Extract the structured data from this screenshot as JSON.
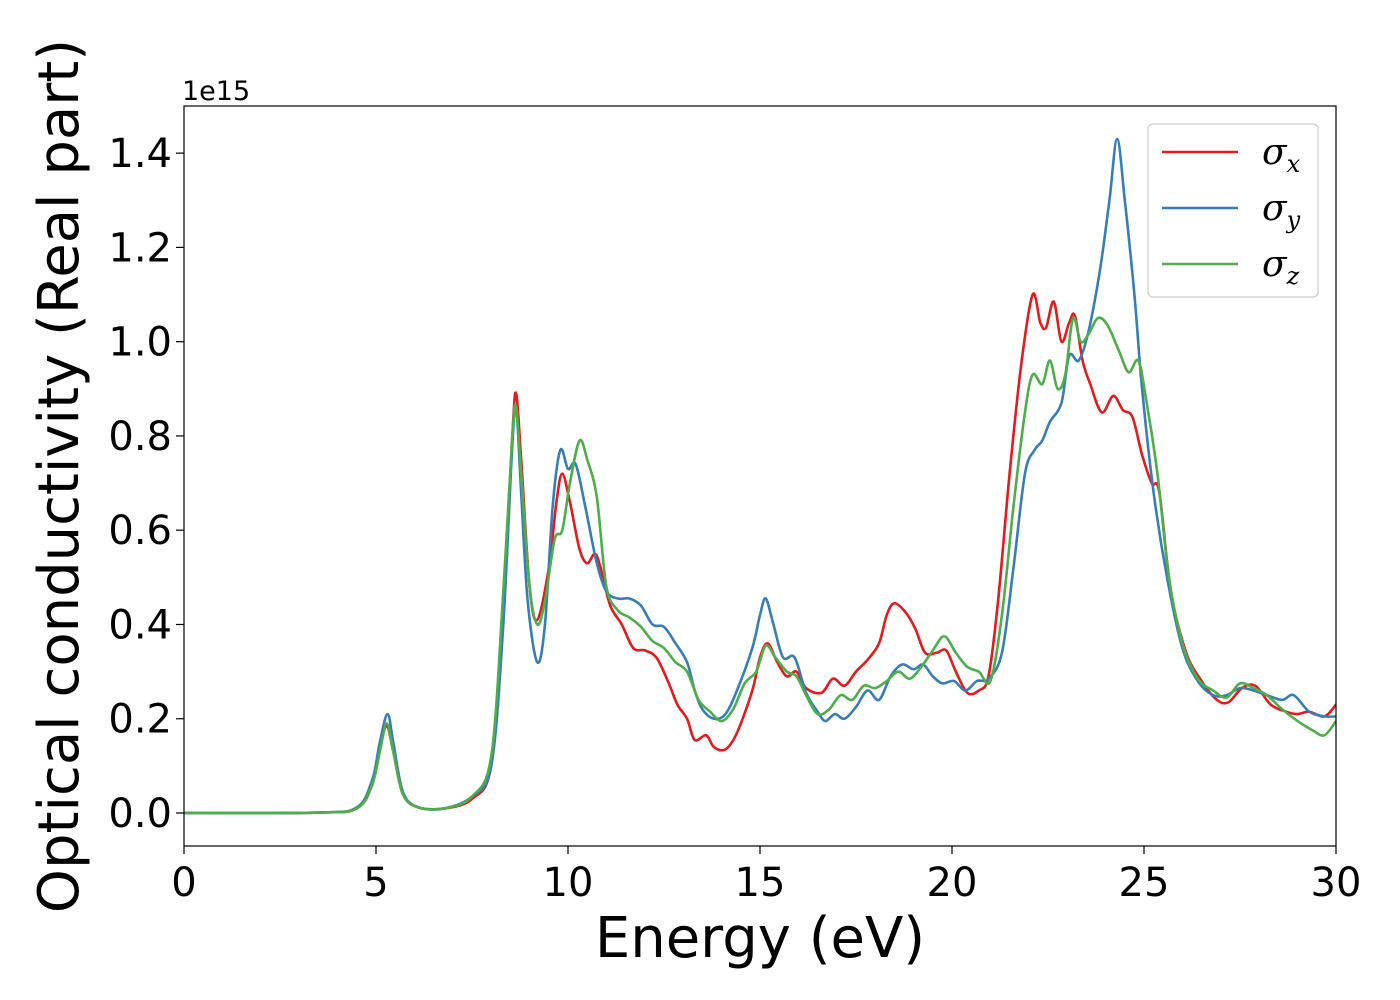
{
  "chart_data": {
    "type": "line",
    "title": "",
    "xlabel": "Energy (eV)",
    "ylabel": "Optical conductivity (Real part)",
    "y_offset_text": "1e15",
    "xlim": [
      0,
      30
    ],
    "ylim": [
      -0.07,
      1.5
    ],
    "x_ticks": [
      0,
      5,
      10,
      15,
      20,
      25,
      30
    ],
    "x_tick_labels": [
      "0",
      "5",
      "10",
      "15",
      "20",
      "25",
      "30"
    ],
    "y_ticks": [
      0.0,
      0.2,
      0.4,
      0.6,
      0.8,
      1.0,
      1.2,
      1.4
    ],
    "y_tick_labels": [
      "0.0",
      "0.2",
      "0.4",
      "0.6",
      "0.8",
      "1.0",
      "1.2",
      "1.4"
    ],
    "grid": false,
    "legend_position": "top-right",
    "series": [
      {
        "name": "σx",
        "name_base": "σ",
        "name_sub": "x",
        "color": "#e41a1c",
        "points": [
          [
            0,
            0
          ],
          [
            3.5,
            0.001
          ],
          [
            4.5,
            0.01
          ],
          [
            4.9,
            0.06
          ],
          [
            5.1,
            0.14
          ],
          [
            5.28,
            0.185
          ],
          [
            5.45,
            0.13
          ],
          [
            5.7,
            0.04
          ],
          [
            6.1,
            0.012
          ],
          [
            6.8,
            0.01
          ],
          [
            7.5,
            0.03
          ],
          [
            8.0,
            0.1
          ],
          [
            8.3,
            0.4
          ],
          [
            8.55,
            0.8
          ],
          [
            8.65,
            0.89
          ],
          [
            8.78,
            0.75
          ],
          [
            9.0,
            0.48
          ],
          [
            9.2,
            0.41
          ],
          [
            9.5,
            0.52
          ],
          [
            9.7,
            0.66
          ],
          [
            9.85,
            0.72
          ],
          [
            10.05,
            0.66
          ],
          [
            10.3,
            0.56
          ],
          [
            10.5,
            0.53
          ],
          [
            10.7,
            0.55
          ],
          [
            10.85,
            0.52
          ],
          [
            11.1,
            0.44
          ],
          [
            11.4,
            0.4
          ],
          [
            11.7,
            0.35
          ],
          [
            12.0,
            0.345
          ],
          [
            12.3,
            0.33
          ],
          [
            12.6,
            0.28
          ],
          [
            12.85,
            0.23
          ],
          [
            13.1,
            0.2
          ],
          [
            13.3,
            0.155
          ],
          [
            13.6,
            0.165
          ],
          [
            13.8,
            0.14
          ],
          [
            14.1,
            0.135
          ],
          [
            14.4,
            0.17
          ],
          [
            14.8,
            0.26
          ],
          [
            15.0,
            0.33
          ],
          [
            15.2,
            0.36
          ],
          [
            15.45,
            0.32
          ],
          [
            15.7,
            0.29
          ],
          [
            15.95,
            0.3
          ],
          [
            16.2,
            0.265
          ],
          [
            16.6,
            0.255
          ],
          [
            16.9,
            0.285
          ],
          [
            17.2,
            0.27
          ],
          [
            17.5,
            0.3
          ],
          [
            17.8,
            0.325
          ],
          [
            18.1,
            0.36
          ],
          [
            18.3,
            0.42
          ],
          [
            18.5,
            0.445
          ],
          [
            18.8,
            0.425
          ],
          [
            19.05,
            0.39
          ],
          [
            19.3,
            0.34
          ],
          [
            19.6,
            0.34
          ],
          [
            19.85,
            0.345
          ],
          [
            20.1,
            0.3
          ],
          [
            20.4,
            0.255
          ],
          [
            20.7,
            0.26
          ],
          [
            20.95,
            0.29
          ],
          [
            21.2,
            0.45
          ],
          [
            21.5,
            0.72
          ],
          [
            21.8,
            0.95
          ],
          [
            22.1,
            1.1
          ],
          [
            22.3,
            1.04
          ],
          [
            22.45,
            1.03
          ],
          [
            22.65,
            1.085
          ],
          [
            22.85,
            1.0
          ],
          [
            23.05,
            1.04
          ],
          [
            23.2,
            1.055
          ],
          [
            23.4,
            0.96
          ],
          [
            23.6,
            0.91
          ],
          [
            23.9,
            0.85
          ],
          [
            24.2,
            0.885
          ],
          [
            24.45,
            0.855
          ],
          [
            24.7,
            0.84
          ],
          [
            24.95,
            0.76
          ],
          [
            25.2,
            0.7
          ],
          [
            25.4,
            0.68
          ],
          [
            25.7,
            0.47
          ],
          [
            26.1,
            0.34
          ],
          [
            26.5,
            0.28
          ],
          [
            26.9,
            0.24
          ],
          [
            27.2,
            0.235
          ],
          [
            27.55,
            0.265
          ],
          [
            27.9,
            0.27
          ],
          [
            28.3,
            0.23
          ],
          [
            28.7,
            0.215
          ],
          [
            29.0,
            0.21
          ],
          [
            29.3,
            0.215
          ],
          [
            29.7,
            0.205
          ],
          [
            30.0,
            0.23
          ]
        ]
      },
      {
        "name": "σy",
        "name_base": "σ",
        "name_sub": "y",
        "color": "#377eb8",
        "points": [
          [
            0,
            0
          ],
          [
            3.5,
            0.001
          ],
          [
            4.5,
            0.012
          ],
          [
            4.9,
            0.07
          ],
          [
            5.1,
            0.15
          ],
          [
            5.3,
            0.21
          ],
          [
            5.45,
            0.15
          ],
          [
            5.7,
            0.045
          ],
          [
            6.1,
            0.012
          ],
          [
            6.8,
            0.01
          ],
          [
            7.5,
            0.035
          ],
          [
            8.0,
            0.1
          ],
          [
            8.3,
            0.38
          ],
          [
            8.55,
            0.78
          ],
          [
            8.65,
            0.86
          ],
          [
            8.78,
            0.68
          ],
          [
            8.95,
            0.45
          ],
          [
            9.2,
            0.32
          ],
          [
            9.4,
            0.4
          ],
          [
            9.6,
            0.65
          ],
          [
            9.8,
            0.77
          ],
          [
            10.0,
            0.73
          ],
          [
            10.2,
            0.74
          ],
          [
            10.45,
            0.65
          ],
          [
            10.75,
            0.53
          ],
          [
            11.0,
            0.47
          ],
          [
            11.3,
            0.455
          ],
          [
            11.6,
            0.455
          ],
          [
            11.9,
            0.44
          ],
          [
            12.2,
            0.4
          ],
          [
            12.5,
            0.395
          ],
          [
            12.8,
            0.36
          ],
          [
            13.1,
            0.32
          ],
          [
            13.3,
            0.26
          ],
          [
            13.5,
            0.22
          ],
          [
            13.8,
            0.2
          ],
          [
            14.1,
            0.21
          ],
          [
            14.4,
            0.26
          ],
          [
            14.8,
            0.35
          ],
          [
            15.0,
            0.42
          ],
          [
            15.15,
            0.455
          ],
          [
            15.35,
            0.4
          ],
          [
            15.6,
            0.33
          ],
          [
            15.9,
            0.33
          ],
          [
            16.2,
            0.255
          ],
          [
            16.5,
            0.215
          ],
          [
            16.7,
            0.195
          ],
          [
            16.95,
            0.21
          ],
          [
            17.2,
            0.2
          ],
          [
            17.5,
            0.225
          ],
          [
            17.8,
            0.26
          ],
          [
            18.1,
            0.24
          ],
          [
            18.4,
            0.29
          ],
          [
            18.7,
            0.315
          ],
          [
            19.0,
            0.305
          ],
          [
            19.25,
            0.315
          ],
          [
            19.5,
            0.29
          ],
          [
            19.75,
            0.275
          ],
          [
            20.05,
            0.28
          ],
          [
            20.35,
            0.26
          ],
          [
            20.65,
            0.28
          ],
          [
            20.95,
            0.285
          ],
          [
            21.3,
            0.34
          ],
          [
            21.6,
            0.52
          ],
          [
            21.9,
            0.72
          ],
          [
            22.15,
            0.77
          ],
          [
            22.35,
            0.79
          ],
          [
            22.55,
            0.83
          ],
          [
            22.85,
            0.87
          ],
          [
            23.05,
            0.97
          ],
          [
            23.3,
            0.96
          ],
          [
            23.55,
            1.02
          ],
          [
            23.85,
            1.15
          ],
          [
            24.1,
            1.3
          ],
          [
            24.3,
            1.43
          ],
          [
            24.5,
            1.3
          ],
          [
            24.75,
            1.1
          ],
          [
            24.95,
            0.9
          ],
          [
            25.25,
            0.68
          ],
          [
            25.6,
            0.5
          ],
          [
            26.0,
            0.35
          ],
          [
            26.4,
            0.28
          ],
          [
            26.8,
            0.25
          ],
          [
            27.15,
            0.25
          ],
          [
            27.5,
            0.265
          ],
          [
            27.85,
            0.26
          ],
          [
            28.2,
            0.25
          ],
          [
            28.6,
            0.24
          ],
          [
            28.9,
            0.25
          ],
          [
            29.3,
            0.215
          ],
          [
            29.7,
            0.205
          ],
          [
            30.0,
            0.205
          ]
        ]
      },
      {
        "name": "σz",
        "name_base": "σ",
        "name_sub": "z",
        "color": "#4daf4a",
        "points": [
          [
            0,
            0
          ],
          [
            3.5,
            0.001
          ],
          [
            4.5,
            0.01
          ],
          [
            4.9,
            0.06
          ],
          [
            5.1,
            0.13
          ],
          [
            5.28,
            0.19
          ],
          [
            5.45,
            0.13
          ],
          [
            5.7,
            0.04
          ],
          [
            6.1,
            0.012
          ],
          [
            6.8,
            0.01
          ],
          [
            7.5,
            0.035
          ],
          [
            8.0,
            0.12
          ],
          [
            8.3,
            0.45
          ],
          [
            8.55,
            0.8
          ],
          [
            8.65,
            0.86
          ],
          [
            8.78,
            0.72
          ],
          [
            9.0,
            0.48
          ],
          [
            9.2,
            0.4
          ],
          [
            9.4,
            0.45
          ],
          [
            9.65,
            0.58
          ],
          [
            9.85,
            0.6
          ],
          [
            10.05,
            0.7
          ],
          [
            10.3,
            0.79
          ],
          [
            10.5,
            0.75
          ],
          [
            10.75,
            0.67
          ],
          [
            11.0,
            0.48
          ],
          [
            11.3,
            0.43
          ],
          [
            11.6,
            0.415
          ],
          [
            11.9,
            0.395
          ],
          [
            12.2,
            0.365
          ],
          [
            12.5,
            0.35
          ],
          [
            12.8,
            0.32
          ],
          [
            13.1,
            0.3
          ],
          [
            13.4,
            0.24
          ],
          [
            13.7,
            0.215
          ],
          [
            14.0,
            0.195
          ],
          [
            14.3,
            0.22
          ],
          [
            14.6,
            0.275
          ],
          [
            14.9,
            0.3
          ],
          [
            15.15,
            0.355
          ],
          [
            15.4,
            0.33
          ],
          [
            15.7,
            0.3
          ],
          [
            15.95,
            0.29
          ],
          [
            16.2,
            0.25
          ],
          [
            16.5,
            0.21
          ],
          [
            16.8,
            0.22
          ],
          [
            17.1,
            0.25
          ],
          [
            17.4,
            0.24
          ],
          [
            17.7,
            0.27
          ],
          [
            18.0,
            0.265
          ],
          [
            18.3,
            0.28
          ],
          [
            18.6,
            0.3
          ],
          [
            18.9,
            0.285
          ],
          [
            19.2,
            0.31
          ],
          [
            19.5,
            0.345
          ],
          [
            19.8,
            0.375
          ],
          [
            20.1,
            0.34
          ],
          [
            20.4,
            0.31
          ],
          [
            20.7,
            0.3
          ],
          [
            21.0,
            0.28
          ],
          [
            21.3,
            0.42
          ],
          [
            21.6,
            0.65
          ],
          [
            21.9,
            0.85
          ],
          [
            22.1,
            0.93
          ],
          [
            22.35,
            0.91
          ],
          [
            22.55,
            0.96
          ],
          [
            22.75,
            0.9
          ],
          [
            22.95,
            0.93
          ],
          [
            23.15,
            1.05
          ],
          [
            23.35,
            1.0
          ],
          [
            23.55,
            1.015
          ],
          [
            23.8,
            1.05
          ],
          [
            24.05,
            1.035
          ],
          [
            24.35,
            0.98
          ],
          [
            24.6,
            0.935
          ],
          [
            24.85,
            0.96
          ],
          [
            25.05,
            0.88
          ],
          [
            25.35,
            0.72
          ],
          [
            25.65,
            0.5
          ],
          [
            26.0,
            0.36
          ],
          [
            26.4,
            0.285
          ],
          [
            26.8,
            0.26
          ],
          [
            27.15,
            0.245
          ],
          [
            27.5,
            0.275
          ],
          [
            27.85,
            0.265
          ],
          [
            28.2,
            0.25
          ],
          [
            28.6,
            0.22
          ],
          [
            29.0,
            0.195
          ],
          [
            29.4,
            0.175
          ],
          [
            29.7,
            0.165
          ],
          [
            30.0,
            0.195
          ]
        ]
      }
    ]
  }
}
